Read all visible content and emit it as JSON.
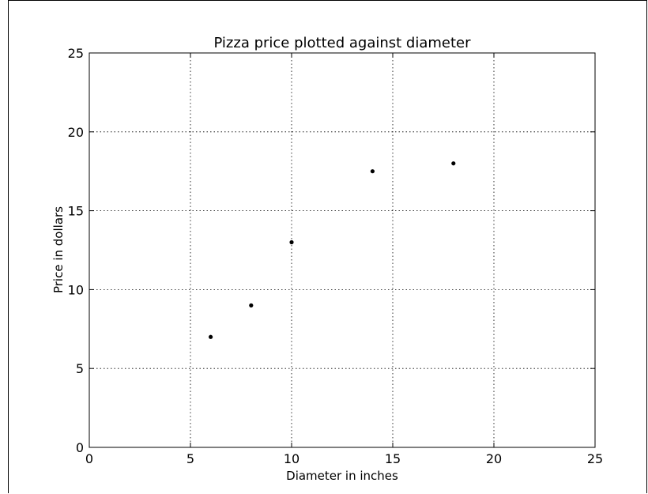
{
  "chart_data": {
    "type": "scatter",
    "title": "Pizza price plotted against diameter",
    "xlabel": "Diameter in inches",
    "ylabel": "Price in dollars",
    "xlim": [
      0,
      25
    ],
    "ylim": [
      0,
      25
    ],
    "xticks": [
      "0",
      "5",
      "10",
      "15",
      "20",
      "25"
    ],
    "yticks": [
      "0",
      "5",
      "10",
      "15",
      "20",
      "25"
    ],
    "grid": true,
    "marker_color": "#000000",
    "points": [
      {
        "x": 6,
        "y": 7
      },
      {
        "x": 8,
        "y": 9
      },
      {
        "x": 10,
        "y": 13
      },
      {
        "x": 14,
        "y": 17.5
      },
      {
        "x": 18,
        "y": 18
      }
    ]
  }
}
